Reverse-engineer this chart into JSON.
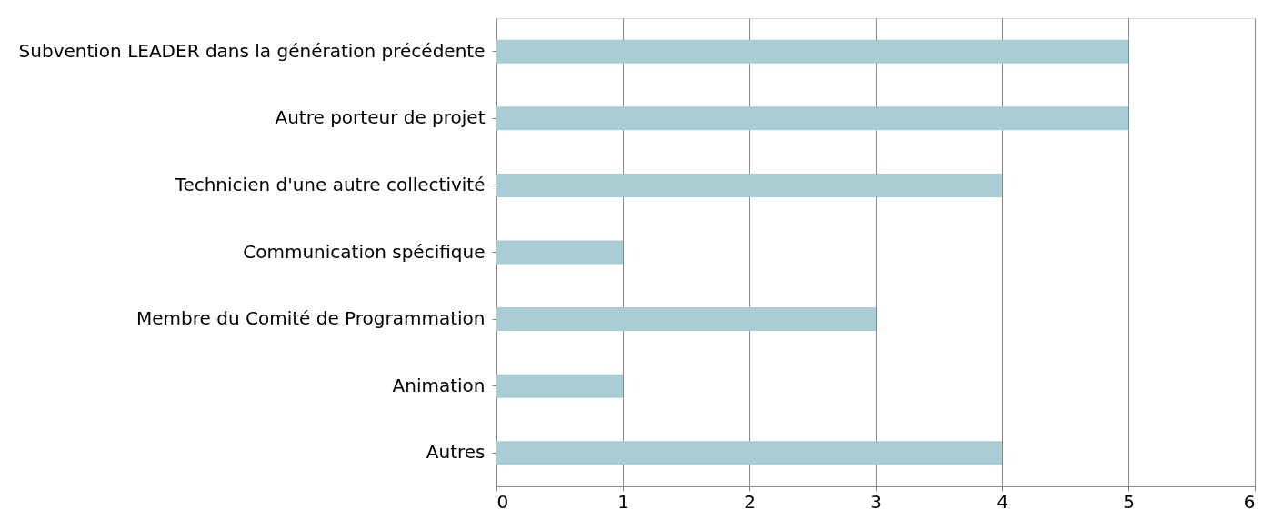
{
  "chart_data": {
    "type": "bar",
    "orientation": "horizontal",
    "categories": [
      "Subvention LEADER dans la génération précédente",
      "Autre porteur de projet",
      "Technicien d'une autre collectivité",
      "Communication spécifique",
      "Membre du Comité de Programmation",
      "Animation",
      "Autres"
    ],
    "values": [
      5,
      5,
      4,
      1,
      3,
      1,
      4
    ],
    "color": "#a9cdd5",
    "xlim": [
      0,
      6
    ],
    "xticks": [
      0,
      1,
      2,
      3,
      4,
      5,
      6
    ],
    "grid": "x"
  }
}
